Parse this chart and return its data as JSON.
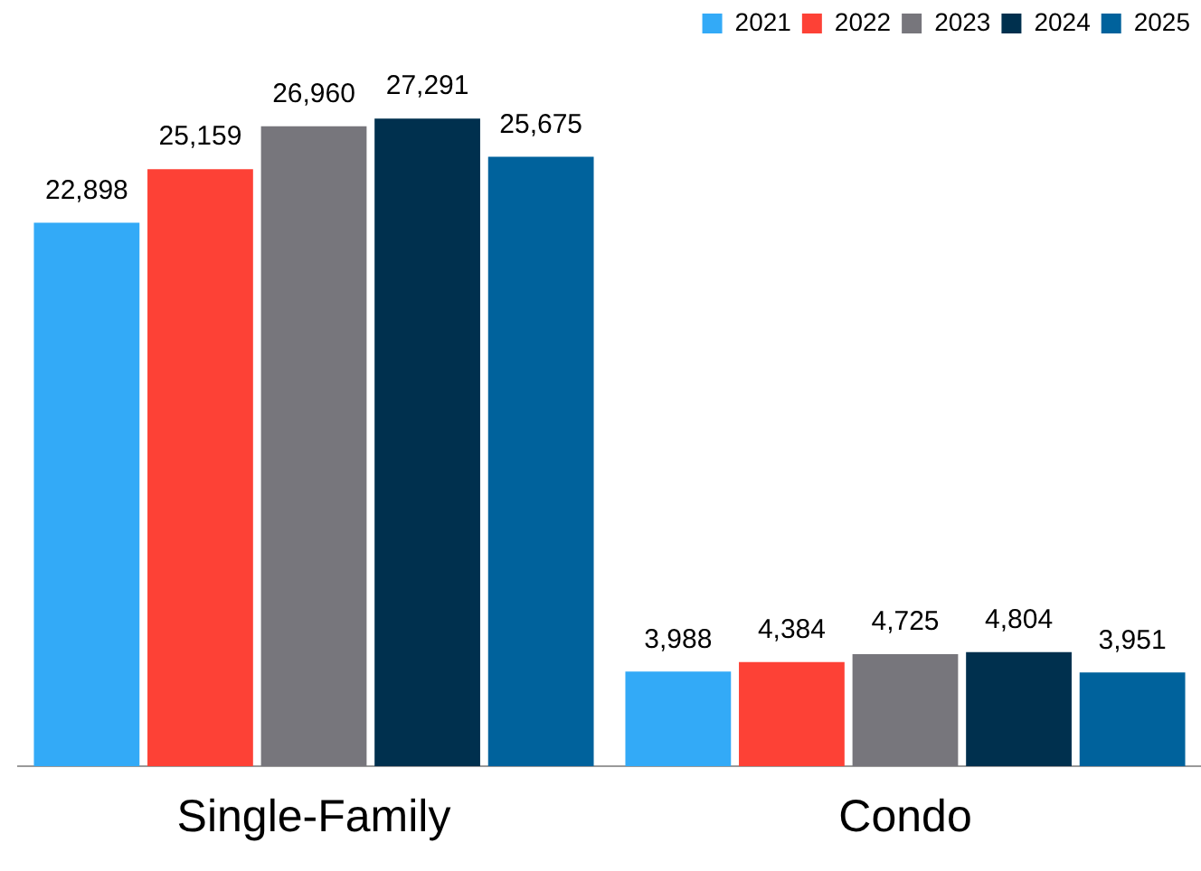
{
  "chart_data": {
    "type": "bar",
    "categories": [
      "Single-Family",
      "Condo"
    ],
    "series": [
      {
        "name": "2021",
        "color": "#33aaf7",
        "values": [
          22898,
          3988
        ],
        "value_labels": [
          "22,898",
          "3,988"
        ]
      },
      {
        "name": "2022",
        "color": "#fd4136",
        "values": [
          25159,
          4384
        ],
        "value_labels": [
          "25,159",
          "4,384"
        ]
      },
      {
        "name": "2023",
        "color": "#77767c",
        "values": [
          26960,
          4725
        ],
        "value_labels": [
          "26,960",
          "4,725"
        ]
      },
      {
        "name": "2024",
        "color": "#00304e",
        "values": [
          27291,
          4804
        ],
        "value_labels": [
          "27,291",
          "4,804"
        ]
      },
      {
        "name": "2025",
        "color": "#00629c",
        "values": [
          25675,
          3951
        ],
        "value_labels": [
          "25,675",
          "3,951"
        ]
      }
    ],
    "legend": "top right",
    "grid": false,
    "tick_labels": "x"
  }
}
